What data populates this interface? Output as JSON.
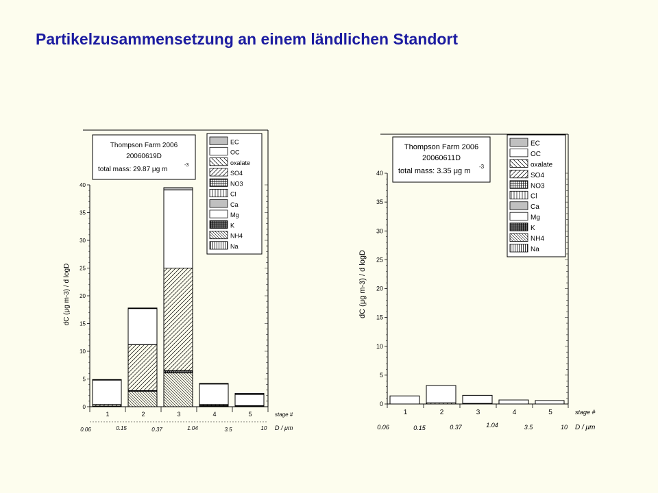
{
  "page": {
    "title": "Partikelzusammensetzung an einem ländlichen Standort"
  },
  "colors": {
    "title": "#1c1ca0",
    "background": "#fdfdee"
  },
  "chart_data": [
    {
      "type": "bar",
      "subtype": "stacked",
      "info": {
        "line1": "Thompson Farm 2006",
        "line2": "20060619D",
        "line3": "total mass: 29.87 μg m",
        "superscript": "-3"
      },
      "ylabel": "dC (μg m-3) / d logD",
      "ylim": [
        0,
        40
      ],
      "yticks": [
        "0",
        "5",
        "10",
        "15",
        "20",
        "25",
        "30",
        "35",
        "40"
      ],
      "stage_label": "stage #",
      "diameter_label": "D / μm",
      "categories": [
        "1",
        "2",
        "3",
        "4",
        "5"
      ],
      "diameters": [
        "0.06",
        "0.15",
        "0.37",
        "1.04",
        "3.5",
        "10"
      ],
      "legend": [
        "EC",
        "OC",
        "oxalate",
        "SO4",
        "NO3",
        "Cl",
        "Ca",
        "Mg",
        "K",
        "NH4",
        "Na"
      ],
      "series": [
        {
          "name": "NH4",
          "values": [
            0.1,
            2.8,
            6.1,
            0.1,
            0.0
          ]
        },
        {
          "name": "K",
          "values": [
            0.0,
            0.1,
            0.4,
            0.0,
            0.0
          ]
        },
        {
          "name": "NO3",
          "values": [
            0.0,
            0.0,
            0.0,
            0.1,
            0.1
          ]
        },
        {
          "name": "SO4",
          "values": [
            0.3,
            8.3,
            18.5,
            0.2,
            0.1
          ]
        },
        {
          "name": "OC",
          "values": [
            4.4,
            6.5,
            14.1,
            3.7,
            2.0
          ]
        },
        {
          "name": "EC",
          "values": [
            0.1,
            0.1,
            0.4,
            0.1,
            0.2
          ]
        }
      ]
    },
    {
      "type": "bar",
      "subtype": "stacked",
      "info": {
        "line1": "Thompson Farm 2006",
        "line2": "20060611D",
        "line3": "total mass: 3.35 μg m",
        "superscript": "-3"
      },
      "ylabel": "dC (μg m-3) / d logD",
      "ylim": [
        0,
        40
      ],
      "yticks": [
        "0",
        "5",
        "10",
        "15",
        "20",
        "25",
        "30",
        "35",
        "40"
      ],
      "stage_label": "stage #",
      "diameter_label": "D / μm",
      "categories": [
        "1",
        "2",
        "3",
        "4",
        "5"
      ],
      "diameters": [
        "0.06",
        "0.15",
        "0.37",
        "1.04",
        "3.5",
        "10"
      ],
      "legend": [
        "EC",
        "OC",
        "oxalate",
        "SO4",
        "NO3",
        "Cl",
        "Ca",
        "Mg",
        "K",
        "NH4",
        "Na"
      ],
      "series": [
        {
          "name": "SO4",
          "values": [
            0.0,
            0.2,
            0.1,
            0.0,
            0.0
          ]
        },
        {
          "name": "OC",
          "values": [
            1.4,
            3.0,
            1.4,
            0.7,
            0.6
          ]
        }
      ]
    }
  ]
}
